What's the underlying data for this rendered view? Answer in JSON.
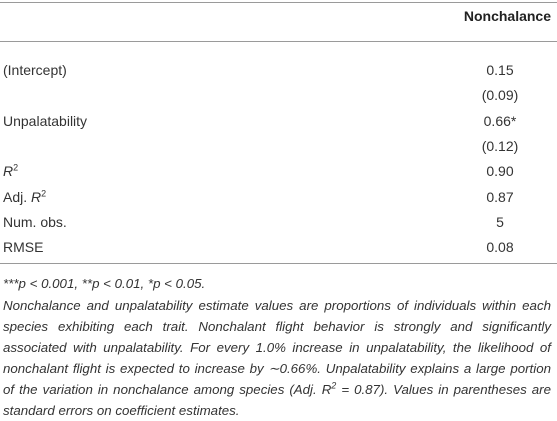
{
  "table": {
    "header": "Nonchalance",
    "rows": [
      {
        "label": "(Intercept)",
        "value": "0.15"
      },
      {
        "value": "(0.09)"
      },
      {
        "label": "Unpalatability",
        "value": "0.66*"
      },
      {
        "value": "(0.12)"
      },
      {
        "label_italic": "R",
        "label_sup": "2",
        "value": "0.90"
      },
      {
        "label_prefix": "Adj. ",
        "label_italic": "R",
        "label_sup": "2",
        "value": "0.87"
      },
      {
        "label": "Num. obs.",
        "value": "5"
      },
      {
        "label": "RMSE",
        "value": "0.08"
      }
    ],
    "footnote": "***p < 0.001, **p < 0.01, *p < 0.05.",
    "note": [
      "Nonchalance and unpalatability estimate values are proportions of individuals within each species exhibiting each trait. Nonchalant flight behavior is strongly and significantly associated with unpalatability. For every 1.0% increase in unpalatability, the likelihood of nonchalant flight is expected to increase by ∼0.66%. Unpalatability explains a large portion of the variation in nonchalance among species (Adj. ",
      "R",
      "2",
      " = 0.87). Values in parentheses are standard errors on coefficient estimates."
    ]
  }
}
